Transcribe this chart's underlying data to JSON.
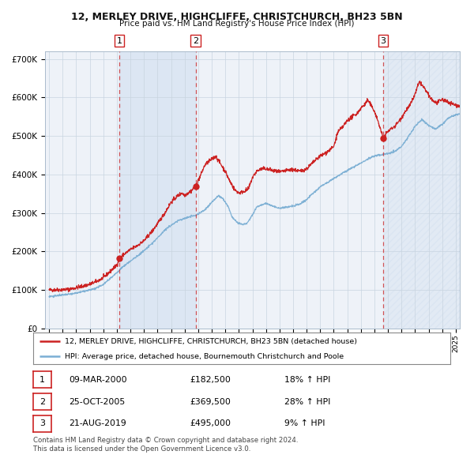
{
  "title1": "12, MERLEY DRIVE, HIGHCLIFFE, CHRISTCHURCH, BH23 5BN",
  "title2": "Price paid vs. HM Land Registry's House Price Index (HPI)",
  "ylim": [
    0,
    720000
  ],
  "xlim_start": 1994.7,
  "xlim_end": 2025.3,
  "sale1_year": 2000.19,
  "sale1_price": 182500,
  "sale2_year": 2005.81,
  "sale2_price": 369500,
  "sale3_year": 2019.64,
  "sale3_price": 495000,
  "legend_line1": "12, MERLEY DRIVE, HIGHCLIFFE, CHRISTCHURCH, BH23 5BN (detached house)",
  "legend_line2": "HPI: Average price, detached house, Bournemouth Christchurch and Poole",
  "table_rows": [
    {
      "num": "1",
      "date": "09-MAR-2000",
      "price": "£182,500",
      "change": "18% ↑ HPI"
    },
    {
      "num": "2",
      "date": "25-OCT-2005",
      "price": "£369,500",
      "change": "28% ↑ HPI"
    },
    {
      "num": "3",
      "date": "21-AUG-2019",
      "price": "£495,000",
      "change": "9% ↑ HPI"
    }
  ],
  "footer1": "Contains HM Land Registry data © Crown copyright and database right 2024.",
  "footer2": "This data is licensed under the Open Government Licence v3.0.",
  "bg_color": "#ffffff",
  "plot_bg": "#eef2f8",
  "red_color": "#cc2222",
  "blue_color": "#7bafd4",
  "grid_color": "#c8d4e0"
}
